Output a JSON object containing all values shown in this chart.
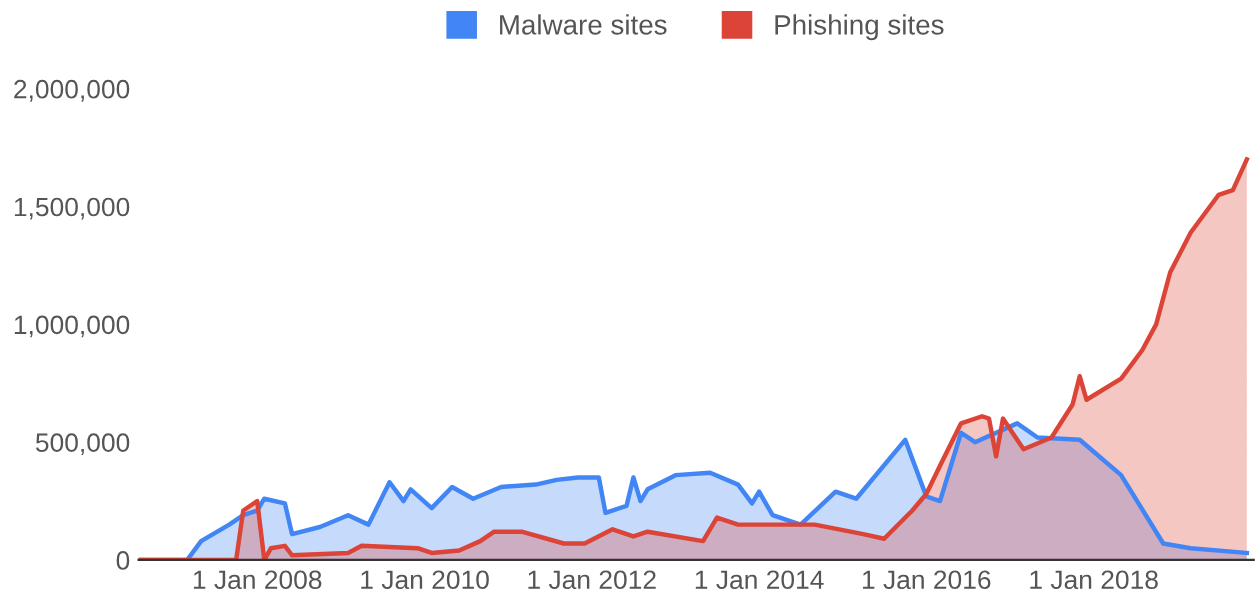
{
  "chart_data": {
    "type": "area",
    "legend": "top",
    "grid": false,
    "xlim": [
      "2006-08",
      "2019-12"
    ],
    "xticks": [
      {
        "value": "2008-01-01",
        "label": "1 Jan 2008"
      },
      {
        "value": "2010-01-01",
        "label": "1 Jan 2010"
      },
      {
        "value": "2012-01-01",
        "label": "1 Jan 2012"
      },
      {
        "value": "2014-01-01",
        "label": "1 Jan 2014"
      },
      {
        "value": "2016-01-01",
        "label": "1 Jan 2016"
      },
      {
        "value": "2018-01-01",
        "label": "1 Jan 2018"
      }
    ],
    "ylim": [
      0,
      2000000
    ],
    "yticks": [
      {
        "value": 0,
        "label": "0"
      },
      {
        "value": 500000,
        "label": "500,000"
      },
      {
        "value": 1000000,
        "label": "1,000,000"
      },
      {
        "value": 1500000,
        "label": "1,500,000"
      },
      {
        "value": 2000000,
        "label": "2,000,000"
      }
    ],
    "series": [
      {
        "name": "Malware sites",
        "color": "#4285f4",
        "x": [
          "2006-08",
          "2007-03",
          "2007-05",
          "2007-09",
          "2007-11",
          "2008-01",
          "2008-02",
          "2008-05",
          "2008-06",
          "2008-10",
          "2009-02",
          "2009-05",
          "2009-07",
          "2009-08",
          "2009-10",
          "2009-11",
          "2010-02",
          "2010-05",
          "2010-08",
          "2010-12",
          "2011-05",
          "2011-08",
          "2011-11",
          "2012-02",
          "2012-03",
          "2012-06",
          "2012-07",
          "2012-08",
          "2012-09",
          "2013-01",
          "2013-06",
          "2013-10",
          "2013-12",
          "2014-01",
          "2014-03",
          "2014-07",
          "2014-12",
          "2015-03",
          "2015-10",
          "2016-01",
          "2016-03",
          "2016-06",
          "2016-08",
          "2017-02",
          "2017-05",
          "2017-11",
          "2018-05",
          "2018-11",
          "2019-03",
          "2019-11"
        ],
        "values": [
          0,
          0,
          80000,
          150000,
          190000,
          210000,
          260000,
          240000,
          110000,
          140000,
          190000,
          150000,
          270000,
          330000,
          250000,
          300000,
          220000,
          310000,
          260000,
          310000,
          320000,
          340000,
          350000,
          350000,
          200000,
          230000,
          350000,
          250000,
          300000,
          360000,
          370000,
          320000,
          240000,
          290000,
          190000,
          150000,
          290000,
          260000,
          510000,
          270000,
          250000,
          540000,
          500000,
          580000,
          520000,
          510000,
          360000,
          70000,
          50000,
          30000
        ]
      },
      {
        "name": "Phishing sites",
        "color": "#db4437",
        "x": [
          "2006-08",
          "2007-10",
          "2007-11",
          "2008-01",
          "2008-02",
          "2008-03",
          "2008-05",
          "2008-06",
          "2009-02",
          "2009-04",
          "2009-12",
          "2010-02",
          "2010-06",
          "2010-09",
          "2010-11",
          "2011-03",
          "2011-09",
          "2011-12",
          "2012-04",
          "2012-07",
          "2012-09",
          "2013-05",
          "2013-07",
          "2013-10",
          "2014-09",
          "2015-04",
          "2015-07",
          "2015-11",
          "2016-01",
          "2016-03",
          "2016-06",
          "2016-09",
          "2016-10",
          "2016-11",
          "2016-12",
          "2017-03",
          "2017-07",
          "2017-10",
          "2017-11",
          "2017-12",
          "2018-05",
          "2018-08",
          "2018-10",
          "2018-12",
          "2019-03",
          "2019-07",
          "2019-09",
          "2019-11"
        ],
        "values": [
          0,
          0,
          210000,
          250000,
          0,
          50000,
          60000,
          20000,
          30000,
          60000,
          50000,
          30000,
          40000,
          80000,
          120000,
          120000,
          70000,
          70000,
          130000,
          100000,
          120000,
          80000,
          180000,
          150000,
          150000,
          110000,
          90000,
          210000,
          280000,
          400000,
          580000,
          610000,
          600000,
          440000,
          600000,
          470000,
          520000,
          660000,
          780000,
          680000,
          770000,
          890000,
          1000000,
          1220000,
          1390000,
          1550000,
          1570000,
          1700000
        ]
      }
    ]
  }
}
